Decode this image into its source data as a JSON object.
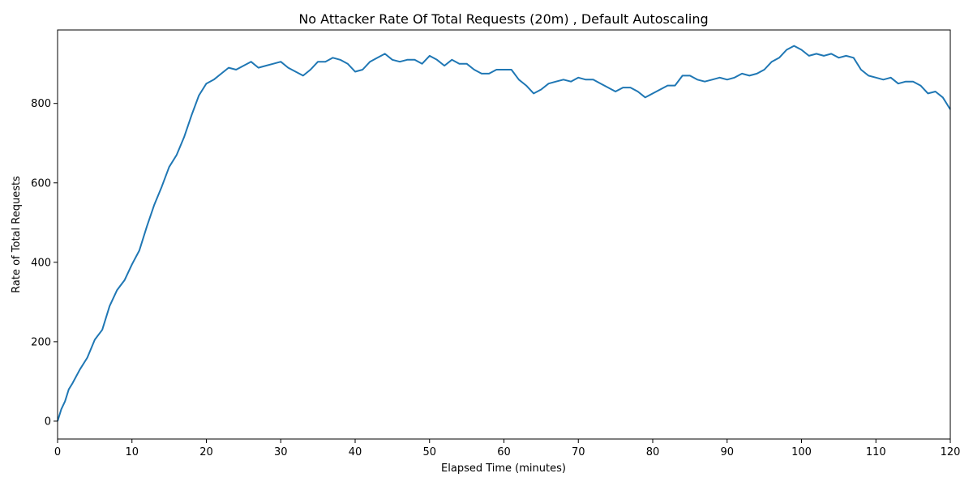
{
  "chart_data": {
    "type": "line",
    "title": "No Attacker Rate Of Total Requests (20m) , Default Autoscaling",
    "xlabel": "Elapsed Time (minutes)",
    "ylabel": "Rate of Total Requests",
    "xlim": [
      0,
      120
    ],
    "ylim": [
      -45,
      985
    ],
    "xticks": [
      0,
      10,
      20,
      30,
      40,
      50,
      60,
      70,
      80,
      90,
      100,
      110,
      120
    ],
    "yticks": [
      0,
      200,
      400,
      600,
      800
    ],
    "grid": false,
    "line_color": "#1f77b4",
    "series": [
      {
        "x": [
          0,
          0.5,
          1,
          1.5,
          2,
          3,
          4,
          5,
          6,
          7,
          8,
          9,
          10,
          11,
          12,
          13,
          14,
          15,
          16,
          17,
          18,
          19,
          20,
          21,
          22,
          23,
          24,
          25,
          26,
          27,
          28,
          29,
          30,
          31,
          32,
          33,
          34,
          35,
          36,
          37,
          38,
          39,
          40,
          41,
          42,
          43,
          44,
          45,
          46,
          47,
          48,
          49,
          50,
          51,
          52,
          53,
          54,
          55,
          56,
          57,
          58,
          59,
          60,
          61,
          62,
          63,
          64,
          65,
          66,
          67,
          68,
          69,
          70,
          71,
          72,
          73,
          74,
          75,
          76,
          77,
          78,
          79,
          80,
          81,
          82,
          83,
          84,
          85,
          86,
          87,
          88,
          89,
          90,
          91,
          92,
          93,
          94,
          95,
          96,
          97,
          98,
          99,
          100,
          101,
          102,
          103,
          104,
          105,
          106,
          107,
          108,
          109,
          110,
          111,
          112,
          113,
          114,
          115,
          116,
          117,
          118,
          119,
          120
        ],
        "y": [
          0,
          30,
          50,
          80,
          95,
          130,
          160,
          205,
          230,
          290,
          330,
          355,
          395,
          430,
          490,
          545,
          590,
          640,
          670,
          715,
          770,
          820,
          850,
          860,
          875,
          890,
          885,
          895,
          905,
          890,
          895,
          900,
          905,
          890,
          880,
          870,
          885,
          905,
          905,
          915,
          910,
          900,
          880,
          885,
          905,
          915,
          925,
          910,
          905,
          910,
          910,
          900,
          920,
          910,
          895,
          910,
          900,
          900,
          885,
          875,
          875,
          885,
          885,
          885,
          860,
          845,
          825,
          835,
          850,
          855,
          860,
          855,
          865,
          860,
          860,
          850,
          840,
          830,
          840,
          840,
          830,
          815,
          825,
          835,
          845,
          845,
          870,
          870,
          860,
          855,
          860,
          865,
          860,
          865,
          875,
          870,
          875,
          885,
          905,
          915,
          935,
          945,
          935,
          920,
          925,
          920,
          925,
          915,
          920,
          915,
          885,
          870,
          865,
          860,
          865,
          850,
          855,
          855,
          845,
          825,
          830,
          815,
          785
        ]
      }
    ]
  }
}
